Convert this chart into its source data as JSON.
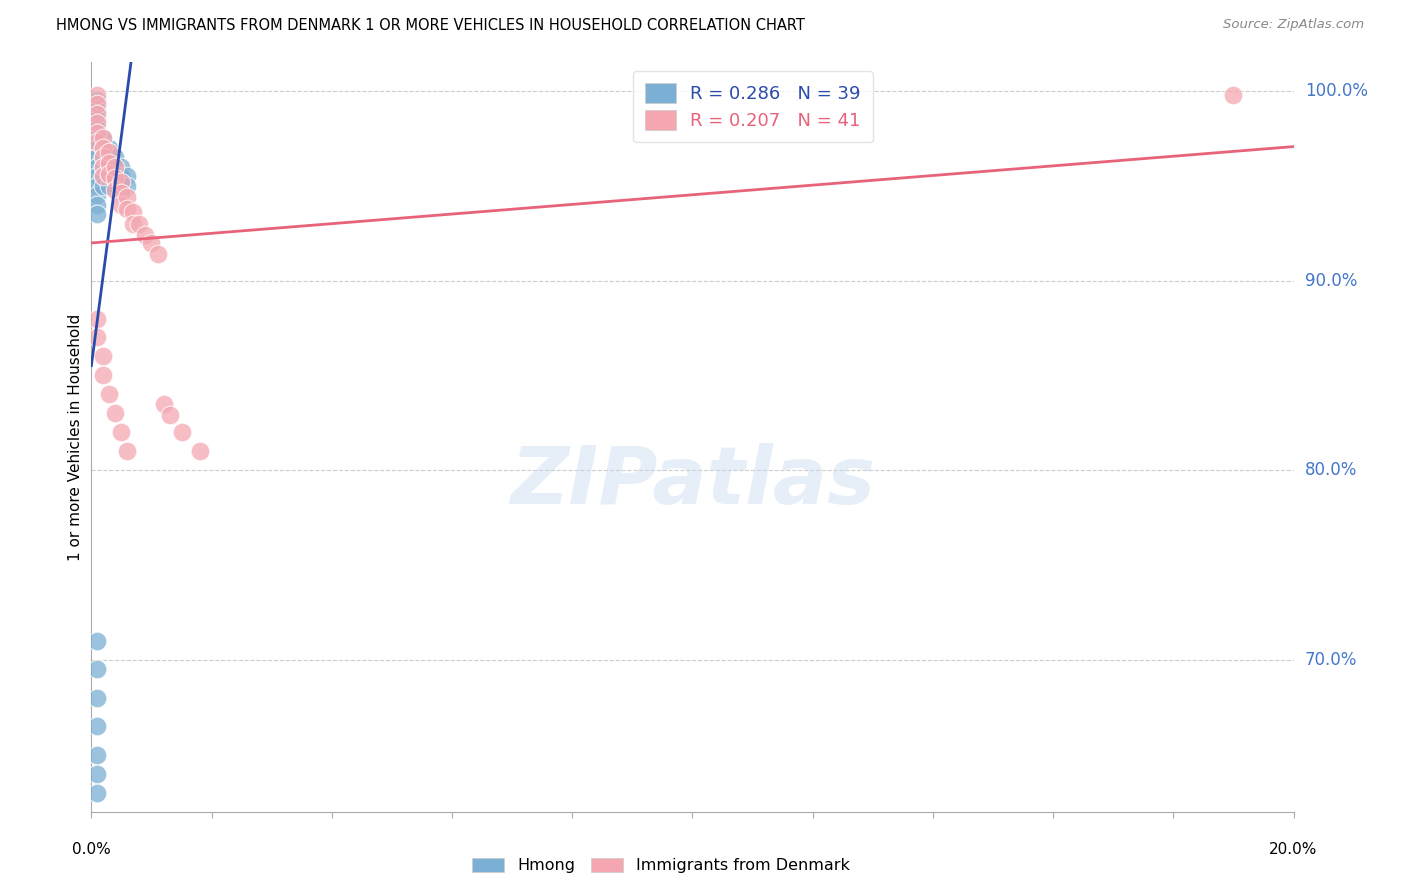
{
  "title": "HMONG VS IMMIGRANTS FROM DENMARK 1 OR MORE VEHICLES IN HOUSEHOLD CORRELATION CHART",
  "source": "Source: ZipAtlas.com",
  "ylabel": "1 or more Vehicles in Household",
  "watermark": "ZIPatlas",
  "legend1_label": "R = 0.286   N = 39",
  "legend2_label": "R = 0.207   N = 41",
  "hmong_color": "#7BAFD4",
  "denmark_color": "#F4A7B0",
  "hmong_line_color": "#2B4BAA",
  "denmark_line_color": "#E8637A",
  "right_axis_color": "#4477CC",
  "right_ytick_labels": [
    "100.0%",
    "90.0%",
    "80.0%",
    "70.0%"
  ],
  "right_ytick_values": [
    1.0,
    0.9,
    0.8,
    0.7
  ],
  "hmong_x": [
    0.001,
    0.001,
    0.001,
    0.001,
    0.001,
    0.001,
    0.001,
    0.001,
    0.001,
    0.001,
    0.001,
    0.001,
    0.001,
    0.002,
    0.002,
    0.002,
    0.002,
    0.002,
    0.002,
    0.003,
    0.003,
    0.003,
    0.003,
    0.003,
    0.004,
    0.004,
    0.004,
    0.005,
    0.005,
    0.005,
    0.006,
    0.006,
    0.001,
    0.001,
    0.001,
    0.001,
    0.001,
    0.001,
    0.001
  ],
  "hmong_y": [
    0.995,
    0.99,
    0.985,
    0.98,
    0.975,
    0.97,
    0.965,
    0.96,
    0.955,
    0.95,
    0.945,
    0.94,
    0.935,
    0.975,
    0.97,
    0.965,
    0.96,
    0.955,
    0.95,
    0.97,
    0.965,
    0.96,
    0.955,
    0.95,
    0.965,
    0.96,
    0.955,
    0.96,
    0.955,
    0.95,
    0.955,
    0.95,
    0.71,
    0.695,
    0.68,
    0.665,
    0.65,
    0.64,
    0.63
  ],
  "denmark_x": [
    0.001,
    0.001,
    0.001,
    0.001,
    0.001,
    0.001,
    0.002,
    0.002,
    0.002,
    0.002,
    0.002,
    0.003,
    0.003,
    0.003,
    0.004,
    0.004,
    0.004,
    0.005,
    0.005,
    0.005,
    0.006,
    0.006,
    0.007,
    0.007,
    0.008,
    0.009,
    0.01,
    0.011,
    0.012,
    0.013,
    0.015,
    0.018,
    0.001,
    0.001,
    0.002,
    0.002,
    0.003,
    0.004,
    0.005,
    0.006,
    0.19
  ],
  "denmark_y": [
    0.998,
    0.993,
    0.988,
    0.983,
    0.978,
    0.973,
    0.975,
    0.97,
    0.965,
    0.96,
    0.955,
    0.968,
    0.962,
    0.956,
    0.96,
    0.954,
    0.948,
    0.952,
    0.946,
    0.94,
    0.944,
    0.938,
    0.936,
    0.93,
    0.93,
    0.924,
    0.92,
    0.914,
    0.835,
    0.829,
    0.82,
    0.81,
    0.88,
    0.87,
    0.86,
    0.85,
    0.84,
    0.83,
    0.82,
    0.81,
    0.998
  ],
  "xlim": [
    0.0,
    0.2
  ],
  "ylim": [
    0.62,
    1.015
  ],
  "background_color": "#FFFFFF",
  "grid_color": "#CCCCCC"
}
